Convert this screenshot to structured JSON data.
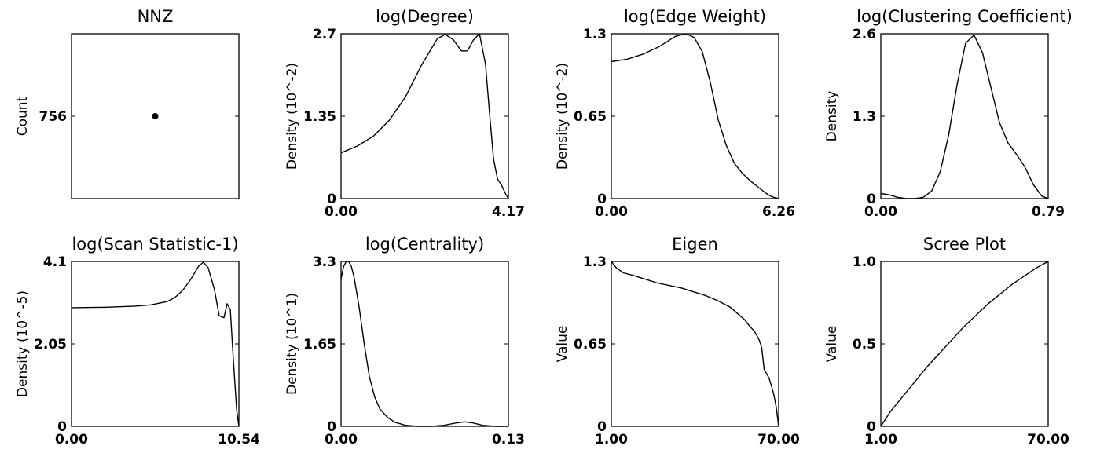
{
  "chart_data": [
    {
      "type": "scatter",
      "title": "NNZ",
      "xlabel": "",
      "ylabel": "Count",
      "xticks": [],
      "yticks": [
        "756"
      ],
      "xlim": [
        0,
        2
      ],
      "ylim": [
        0,
        1512
      ],
      "x": [
        1
      ],
      "y": [
        756
      ]
    },
    {
      "type": "line",
      "title": "log(Degree)",
      "xlabel": "",
      "ylabel": "Density (10^-2)",
      "xticks": [
        "0.00",
        "4.17"
      ],
      "yticks": [
        "0",
        "1.35",
        "2.7"
      ],
      "xlim": [
        0,
        4.17
      ],
      "ylim": [
        0,
        2.7
      ],
      "x": [
        0,
        0.4,
        0.8,
        1.2,
        1.6,
        2.0,
        2.4,
        2.6,
        2.8,
        3.0,
        3.15,
        3.3,
        3.45,
        3.6,
        3.7,
        3.8,
        3.9,
        4.0,
        4.1,
        4.17
      ],
      "y": [
        0.75,
        0.86,
        1.02,
        1.28,
        1.66,
        2.18,
        2.62,
        2.69,
        2.6,
        2.42,
        2.42,
        2.6,
        2.7,
        2.2,
        1.4,
        0.65,
        0.32,
        0.22,
        0.08,
        0
      ]
    },
    {
      "type": "line",
      "title": "log(Edge Weight)",
      "xlabel": "",
      "ylabel": "Density (10^-2)",
      "xticks": [
        "0.00",
        "6.26"
      ],
      "yticks": [
        "0",
        "0.65",
        "1.3"
      ],
      "xlim": [
        0,
        6.26
      ],
      "ylim": [
        0,
        1.3
      ],
      "x": [
        0,
        0.6,
        1.2,
        1.8,
        2.4,
        2.8,
        3.1,
        3.4,
        3.7,
        4.0,
        4.3,
        4.6,
        4.9,
        5.2,
        5.5,
        5.8,
        6.0,
        6.26
      ],
      "y": [
        1.08,
        1.1,
        1.14,
        1.2,
        1.28,
        1.3,
        1.27,
        1.16,
        0.92,
        0.62,
        0.42,
        0.28,
        0.2,
        0.14,
        0.09,
        0.04,
        0.015,
        0
      ]
    },
    {
      "type": "line",
      "title": "log(Clustering Coefficient)",
      "xlabel": "",
      "ylabel": "Density",
      "xticks": [
        "0.00",
        "0.79"
      ],
      "yticks": [
        "0",
        "1.3",
        "2.6"
      ],
      "xlim": [
        0,
        0.79
      ],
      "ylim": [
        0,
        2.6
      ],
      "x": [
        0,
        0.04,
        0.08,
        0.12,
        0.16,
        0.2,
        0.24,
        0.28,
        0.32,
        0.36,
        0.4,
        0.44,
        0.48,
        0.52,
        0.56,
        0.6,
        0.64,
        0.68,
        0.72,
        0.76,
        0.79
      ],
      "y": [
        0.08,
        0.06,
        0.02,
        0,
        0,
        0.02,
        0.12,
        0.42,
        1.0,
        1.8,
        2.45,
        2.58,
        2.3,
        1.75,
        1.2,
        0.88,
        0.7,
        0.5,
        0.22,
        0.04,
        0
      ]
    },
    {
      "type": "line",
      "title": "log(Scan Statistic-1)",
      "xlabel": "",
      "ylabel": "Density (10^-5)",
      "xticks": [
        "0.00",
        "10.54"
      ],
      "yticks": [
        "0",
        "2.05",
        "4.1"
      ],
      "xlim": [
        0,
        10.54
      ],
      "ylim": [
        0,
        4.1
      ],
      "x": [
        0,
        2,
        4,
        5,
        6,
        6.5,
        7,
        7.5,
        8,
        8.3,
        8.6,
        9,
        9.3,
        9.6,
        9.8,
        10,
        10.2,
        10.4,
        10.54
      ],
      "y": [
        2.95,
        2.96,
        2.99,
        3.02,
        3.1,
        3.2,
        3.38,
        3.65,
        3.98,
        4.08,
        3.95,
        3.4,
        2.75,
        2.7,
        3.05,
        2.9,
        1.6,
        0.4,
        0
      ]
    },
    {
      "type": "line",
      "title": "log(Centrality)",
      "xlabel": "",
      "ylabel": "Density (10^1)",
      "xticks": [
        "0.00",
        "0.13"
      ],
      "yticks": [
        "0",
        "1.65",
        "3.3"
      ],
      "xlim": [
        0,
        0.13
      ],
      "ylim": [
        0,
        3.3
      ],
      "x": [
        0,
        0.002,
        0.004,
        0.006,
        0.008,
        0.01,
        0.014,
        0.018,
        0.022,
        0.026,
        0.03,
        0.036,
        0.042,
        0.05,
        0.06,
        0.07,
        0.08,
        0.09,
        0.096,
        0.102,
        0.11,
        0.12,
        0.13
      ],
      "y": [
        2.95,
        3.2,
        3.3,
        3.3,
        3.2,
        3.0,
        2.4,
        1.65,
        1.0,
        0.6,
        0.35,
        0.18,
        0.08,
        0.02,
        0,
        0,
        0.02,
        0.07,
        0.09,
        0.07,
        0.02,
        0,
        0
      ]
    },
    {
      "type": "line",
      "title": "Eigen",
      "xlabel": "",
      "ylabel": "Value",
      "xticks": [
        "1.00",
        "70.00"
      ],
      "yticks": [
        "0",
        "0.65",
        "1.3"
      ],
      "xlim": [
        1,
        70
      ],
      "ylim": [
        0,
        1.3
      ],
      "x": [
        1,
        3,
        6,
        10,
        15,
        20,
        25,
        30,
        35,
        40,
        45,
        50,
        53,
        56,
        58,
        60,
        62,
        63,
        64,
        66,
        67,
        68,
        69,
        70
      ],
      "y": [
        1.3,
        1.25,
        1.21,
        1.19,
        1.16,
        1.13,
        1.11,
        1.09,
        1.06,
        1.03,
        0.99,
        0.94,
        0.89,
        0.84,
        0.79,
        0.75,
        0.68,
        0.62,
        0.45,
        0.38,
        0.32,
        0.25,
        0.15,
        0
      ]
    },
    {
      "type": "line",
      "title": "Scree Plot",
      "xlabel": "",
      "ylabel": "Value",
      "xticks": [
        "1.00",
        "70.00"
      ],
      "yticks": [
        "0",
        "0.5",
        "1.0"
      ],
      "xlim": [
        1,
        70
      ],
      "ylim": [
        0,
        1.0
      ],
      "x": [
        1,
        5,
        10,
        15,
        20,
        25,
        30,
        35,
        40,
        45,
        50,
        55,
        60,
        65,
        70
      ],
      "y": [
        0,
        0.09,
        0.18,
        0.27,
        0.36,
        0.44,
        0.52,
        0.6,
        0.67,
        0.74,
        0.8,
        0.86,
        0.91,
        0.96,
        1.0
      ]
    }
  ]
}
